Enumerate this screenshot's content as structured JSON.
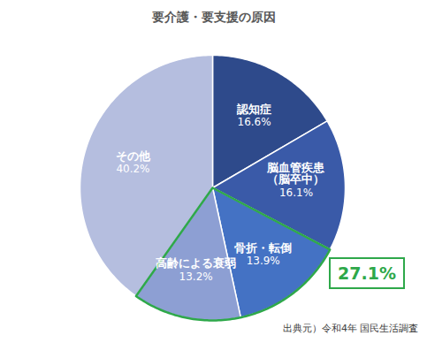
{
  "chart_data": {
    "type": "pie",
    "title": "要介護・要支援の原因",
    "categories": [
      "認知症",
      "脳血管疾患\n（脳卒中）",
      "骨折・転倒",
      "高齢による衰弱",
      "その他"
    ],
    "values": [
      16.6,
      16.1,
      13.9,
      13.2,
      40.2
    ],
    "value_labels": [
      "16.6%",
      "16.1%",
      "13.9%",
      "13.2%",
      "40.2%"
    ],
    "colors": [
      "#2e4a8b",
      "#3a5aa8",
      "#4472c4",
      "#8d9fd3",
      "#b5bedf"
    ],
    "data_labels": true,
    "annotations": [
      {
        "text": "27.1%",
        "categories": [
          "骨折・転倒",
          "高齢による衰弱"
        ]
      }
    ],
    "caption": "出典元）令和4年 国民生活調査"
  }
}
